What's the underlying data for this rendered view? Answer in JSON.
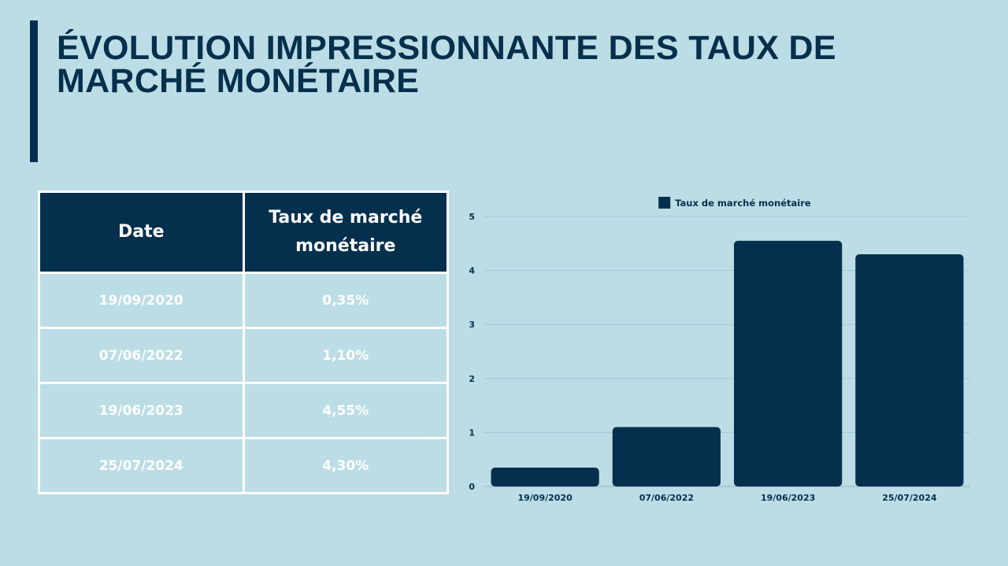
{
  "title": "ÉVOLUTION IMPRESSIONNANTE DES TAUX DE MARCHÉ MONÉTAIRE",
  "table": {
    "headers": [
      "Date",
      "Taux de marché monétaire"
    ],
    "rows": [
      [
        "19/09/2020",
        "0,35%"
      ],
      [
        "07/06/2022",
        "1,10%"
      ],
      [
        "19/06/2023",
        "4,55%"
      ],
      [
        "25/07/2024",
        "4,30%"
      ]
    ]
  },
  "colors": {
    "background": "#bcdde5",
    "accent": "#05304d",
    "cell_text": "#ffffff"
  },
  "chart_data": {
    "type": "bar",
    "categories": [
      "19/09/2020",
      "07/06/2022",
      "19/06/2023",
      "25/07/2024"
    ],
    "series": [
      {
        "name": "Taux de marché monétaire",
        "values": [
          0.35,
          1.1,
          4.55,
          4.3
        ]
      }
    ],
    "yticks": [
      "0",
      "1",
      "2",
      "3",
      "4",
      "5"
    ],
    "ylim": [
      0,
      5
    ],
    "grid": true,
    "legend": "top-center",
    "bar_color": "#05304d"
  }
}
